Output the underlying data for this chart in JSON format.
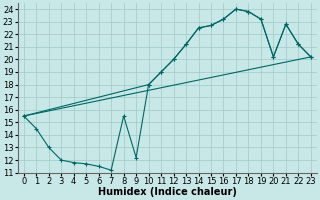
{
  "xlabel": "Humidex (Indice chaleur)",
  "bg_color": "#c8e8e8",
  "line_color": "#006666",
  "grid_color": "#a0c8c8",
  "ylim": [
    11,
    24.5
  ],
  "xlim": [
    -0.5,
    23.5
  ],
  "yticks": [
    11,
    12,
    13,
    14,
    15,
    16,
    17,
    18,
    19,
    20,
    21,
    22,
    23,
    24
  ],
  "xticks": [
    0,
    1,
    2,
    3,
    4,
    5,
    6,
    7,
    8,
    9,
    10,
    11,
    12,
    13,
    14,
    15,
    16,
    17,
    18,
    19,
    20,
    21,
    22,
    23
  ],
  "fontsize_axis": 7,
  "fontsize_tick": 6,
  "curve1_x": [
    0,
    1,
    2,
    3,
    4,
    5,
    6,
    7,
    8,
    9,
    10,
    11,
    12,
    13,
    14,
    15,
    16,
    17,
    18,
    19,
    20,
    21,
    22,
    23
  ],
  "curve1_y": [
    15.5,
    14.5,
    13.0,
    12.0,
    11.8,
    11.7,
    11.5,
    11.2,
    15.5,
    12.2,
    18.0,
    19.0,
    20.0,
    21.2,
    22.5,
    22.7,
    23.2,
    24.0,
    23.8,
    23.2,
    20.2,
    22.8,
    21.2,
    20.2
  ],
  "curve2_x": [
    0,
    10,
    11,
    12,
    13,
    14,
    15,
    16,
    17,
    18,
    19,
    20,
    21,
    22,
    23
  ],
  "curve2_y": [
    15.5,
    18.0,
    19.0,
    20.0,
    21.2,
    22.5,
    22.7,
    23.2,
    24.0,
    23.8,
    23.2,
    20.2,
    22.8,
    21.2,
    20.2
  ],
  "line3_x": [
    0,
    23
  ],
  "line3_y": [
    15.5,
    20.2
  ]
}
